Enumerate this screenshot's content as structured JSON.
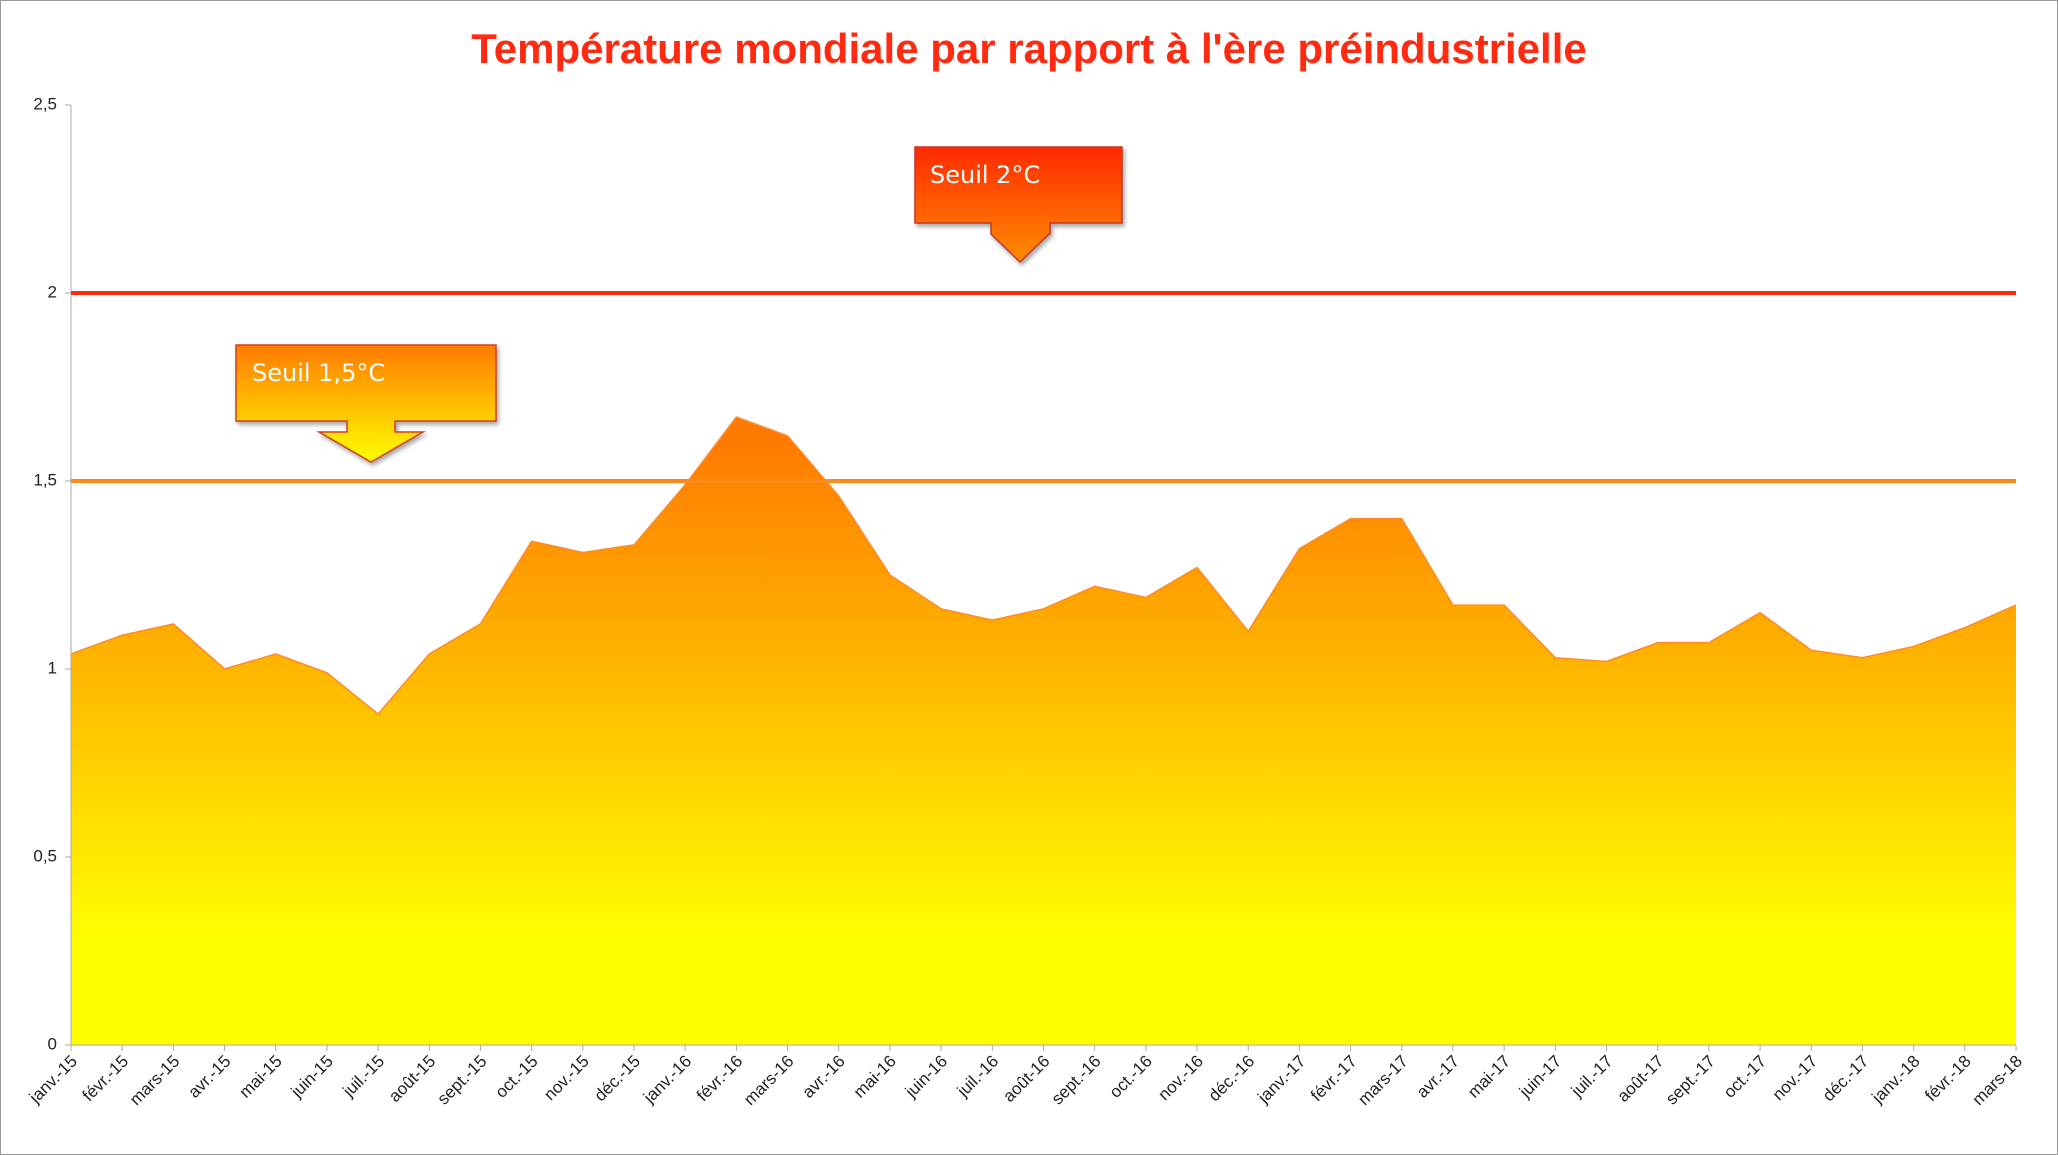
{
  "chart_data": {
    "type": "area",
    "title": "Température mondiale par rapport à l'ère préindustrielle",
    "categories": [
      "janv.-15",
      "févr.-15",
      "mars-15",
      "avr.-15",
      "mai-15",
      "juin-15",
      "juil.-15",
      "août-15",
      "sept.-15",
      "oct.-15",
      "nov.-15",
      "déc.-15",
      "janv.-16",
      "févr.-16",
      "mars-16",
      "avr.-16",
      "mai-16",
      "juin-16",
      "juil.-16",
      "août-16",
      "sept.-16",
      "oct.-16",
      "nov.-16",
      "déc.-16",
      "janv.-17",
      "févr.-17",
      "mars-17",
      "avr.-17",
      "mai-17",
      "juin-17",
      "juil.-17",
      "août-17",
      "sept.-17",
      "oct.-17",
      "nov.-17",
      "déc.-17",
      "janv.-18",
      "févr.-18",
      "mars-18"
    ],
    "values": [
      1.04,
      1.09,
      1.12,
      1.0,
      1.04,
      0.99,
      0.88,
      1.04,
      1.12,
      1.34,
      1.31,
      1.33,
      1.49,
      1.67,
      1.62,
      1.46,
      1.25,
      1.16,
      1.13,
      1.16,
      1.22,
      1.19,
      1.27,
      1.1,
      1.32,
      1.4,
      1.4,
      1.17,
      1.17,
      1.03,
      1.02,
      1.07,
      1.07,
      1.15,
      1.05,
      1.03,
      1.06,
      1.11,
      1.17
    ],
    "color": [
      "#ff7a00",
      "#ffff00"
    ],
    "ylim": [
      0,
      2.5
    ],
    "yticks": [
      0,
      {
        "value": 0.5,
        "label": "0,5"
      },
      1,
      {
        "value": 1.5,
        "label": "1,5"
      },
      2,
      {
        "value": 2.5,
        "label": "2,5"
      }
    ],
    "thresholds": [
      {
        "value": 2,
        "label": "Seuil 2°C",
        "color": "#ff2a10"
      },
      {
        "value": 1.5,
        "label": "Seuil 1,5°C",
        "color": "#ff8c1a"
      }
    ]
  }
}
